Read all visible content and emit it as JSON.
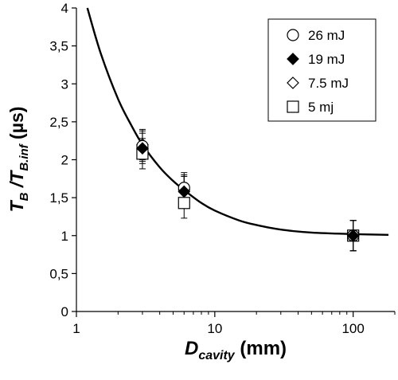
{
  "chart_data": {
    "type": "scatter",
    "x_scale": "log",
    "xlim": [
      1,
      200
    ],
    "ylim": [
      0,
      4
    ],
    "grid": false,
    "legend_position": "top-right",
    "x_ticks": [
      {
        "value": 1,
        "label": "1"
      },
      {
        "value": 10,
        "label": "10"
      },
      {
        "value": 100,
        "label": "100"
      }
    ],
    "y_ticks": [
      {
        "value": 0,
        "label": "0"
      },
      {
        "value": 0.5,
        "label": "0,5"
      },
      {
        "value": 1,
        "label": "1"
      },
      {
        "value": 1.5,
        "label": "1,5"
      },
      {
        "value": 2,
        "label": "2"
      },
      {
        "value": 2.5,
        "label": "2,5"
      },
      {
        "value": 3,
        "label": "3"
      },
      {
        "value": 3.5,
        "label": "3,5"
      },
      {
        "value": 4,
        "label": "4"
      }
    ],
    "xlabel": {
      "main": "D",
      "sub": "cavity",
      "rest": " (mm)"
    },
    "ylabel": {
      "t1": "T",
      "s1": "B",
      "mid": " /T",
      "s2": "B.inf",
      "rest": " (µs)"
    },
    "series": [
      {
        "name": "26 mJ",
        "marker": "circle-open",
        "points": [
          {
            "x": 3,
            "y": 2.18,
            "err": 0.2
          },
          {
            "x": 6,
            "y": 1.63,
            "err": 0.2
          },
          {
            "x": 100,
            "y": 1.0,
            "err": 0.2
          }
        ]
      },
      {
        "name": "19 mJ",
        "marker": "diamond-filled",
        "points": [
          {
            "x": 3,
            "y": 2.15,
            "err": 0.2
          },
          {
            "x": 6,
            "y": 1.58,
            "err": 0.2
          },
          {
            "x": 100,
            "y": 1.0,
            "err": 0.2
          }
        ]
      },
      {
        "name": "7.5 mJ",
        "marker": "diamond-open",
        "points": [
          {
            "x": 3,
            "y": 2.2,
            "err": 0.2
          },
          {
            "x": 6,
            "y": 1.6,
            "err": 0.2
          },
          {
            "x": 100,
            "y": 1.0,
            "err": 0.2
          }
        ]
      },
      {
        "name": "5 mj",
        "marker": "square-open",
        "points": [
          {
            "x": 3,
            "y": 2.08,
            "err": 0.2
          },
          {
            "x": 6,
            "y": 1.43,
            "err": 0.2
          },
          {
            "x": 100,
            "y": 1.0,
            "err": 0.2
          }
        ]
      }
    ],
    "fit_curve": [
      {
        "x": 1.2,
        "y": 4.0
      },
      {
        "x": 1.5,
        "y": 3.4
      },
      {
        "x": 2,
        "y": 2.8
      },
      {
        "x": 2.5,
        "y": 2.45
      },
      {
        "x": 3,
        "y": 2.2
      },
      {
        "x": 4,
        "y": 1.9
      },
      {
        "x": 5,
        "y": 1.72
      },
      {
        "x": 6,
        "y": 1.6
      },
      {
        "x": 8,
        "y": 1.43
      },
      {
        "x": 10,
        "y": 1.33
      },
      {
        "x": 15,
        "y": 1.2
      },
      {
        "x": 20,
        "y": 1.14
      },
      {
        "x": 30,
        "y": 1.08
      },
      {
        "x": 50,
        "y": 1.04
      },
      {
        "x": 100,
        "y": 1.02
      },
      {
        "x": 180,
        "y": 1.01
      }
    ],
    "colors": {
      "line": "#000000",
      "marker_fill_open": "#ffffff",
      "marker_fill_solid": "#000000"
    }
  }
}
